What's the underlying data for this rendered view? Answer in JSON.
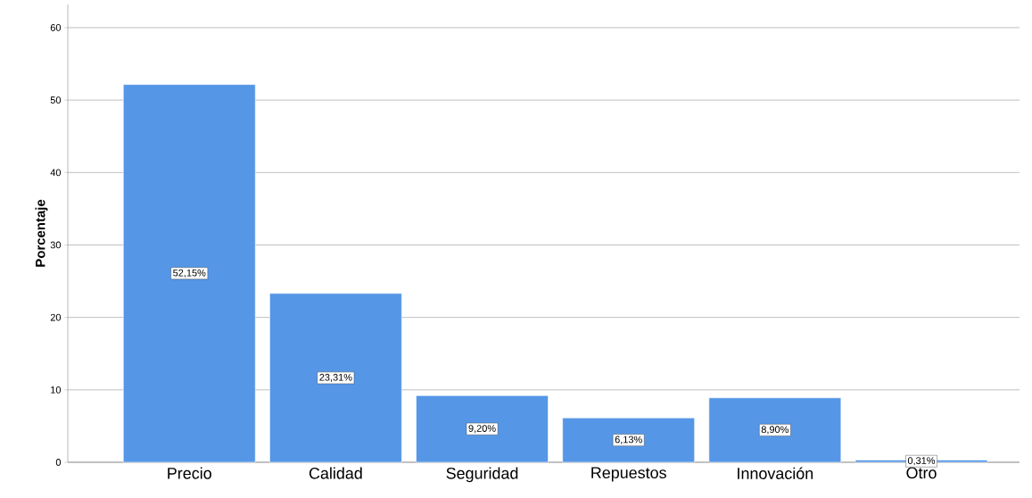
{
  "chart_data": {
    "type": "bar",
    "ylabel": "Porcentaje",
    "categories": [
      "Precio",
      "Calidad",
      "Seguridad",
      "Repuestos",
      "Innovación",
      "Otro"
    ],
    "values": [
      52.15,
      23.31,
      9.2,
      6.13,
      8.9,
      0.31
    ],
    "value_labels": [
      "52,15%",
      "23,31%",
      "9,20%",
      "6,13%",
      "8,90%",
      "0,31%"
    ],
    "color": "#5596e6",
    "ylim": [
      0,
      63.2
    ],
    "yticks": [
      0,
      10,
      20,
      30,
      40,
      50,
      60
    ],
    "grid": "y"
  }
}
